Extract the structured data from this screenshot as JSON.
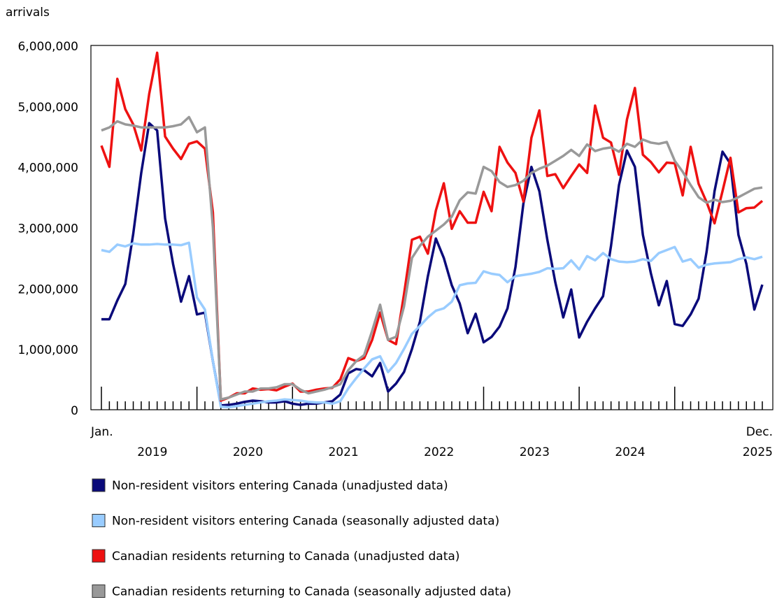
{
  "chart_data": {
    "type": "line",
    "y_label": "arrivals",
    "categories": [
      "Jan.",
      null,
      null,
      null,
      null,
      null,
      null,
      null,
      null,
      null,
      null,
      null,
      null,
      null,
      null,
      null,
      null,
      null,
      null,
      null,
      null,
      null,
      null,
      null,
      null,
      null,
      null,
      null,
      null,
      null,
      null,
      null,
      null,
      null,
      null,
      null,
      null,
      null,
      null,
      null,
      null,
      null,
      null,
      null,
      null,
      null,
      null,
      null,
      null,
      null,
      null,
      null,
      null,
      null,
      null,
      null,
      null,
      null,
      null,
      null,
      null,
      null,
      null,
      null,
      null,
      null,
      null,
      null,
      null,
      null,
      null,
      null,
      null,
      null,
      null,
      null,
      null,
      null,
      null,
      null,
      null,
      null,
      null,
      "Dec."
    ],
    "years": [
      "2019",
      "2020",
      "2021",
      "2022",
      "2023",
      "2024",
      "2025"
    ],
    "ylim": [
      0,
      6000000
    ],
    "yticks": [
      0,
      {
        "value": 1000000,
        "label": "1,000,000"
      },
      {
        "value": 2000000,
        "label": "2,000,000"
      },
      {
        "value": 3000000,
        "label": "3,000,000"
      },
      {
        "value": 4000000,
        "label": "4,000,000"
      },
      {
        "value": 5000000,
        "label": "5,000,000"
      },
      {
        "value": 6000000,
        "label": "6,000,000"
      }
    ],
    "grid": false,
    "series": [
      {
        "name": "Non-resident visitors entering Canada (unadjusted data)",
        "color": "#0a0a7a",
        "values": [
          1490000,
          1490000,
          1800000,
          2070000,
          2900000,
          3900000,
          4720000,
          4600000,
          3150000,
          2400000,
          1780000,
          2200000,
          1570000,
          1600000,
          800000,
          70000,
          80000,
          100000,
          130000,
          150000,
          140000,
          120000,
          120000,
          140000,
          100000,
          80000,
          100000,
          100000,
          120000,
          140000,
          250000,
          600000,
          670000,
          650000,
          550000,
          770000,
          300000,
          430000,
          620000,
          1000000,
          1450000,
          2200000,
          2820000,
          2500000,
          2050000,
          1750000,
          1260000,
          1580000,
          1110000,
          1200000,
          1370000,
          1670000,
          2350000,
          3400000,
          4000000,
          3600000,
          2800000,
          2100000,
          1520000,
          1980000,
          1190000,
          1450000,
          1670000,
          1870000,
          2700000,
          3700000,
          4270000,
          4000000,
          2880000,
          2250000,
          1720000,
          2120000,
          1410000,
          1380000,
          1570000,
          1830000,
          2600000,
          3600000,
          4250000,
          4050000,
          2880000,
          2400000,
          1650000,
          2060000
        ]
      },
      {
        "name": "Non-resident visitors entering Canada (seasonally adjusted data)",
        "color": "#99ccff",
        "values": [
          2630000,
          2600000,
          2720000,
          2690000,
          2740000,
          2720000,
          2720000,
          2730000,
          2720000,
          2720000,
          2710000,
          2750000,
          1850000,
          1650000,
          800000,
          50000,
          40000,
          60000,
          80000,
          100000,
          120000,
          140000,
          150000,
          170000,
          160000,
          150000,
          130000,
          120000,
          120000,
          100000,
          140000,
          350000,
          520000,
          680000,
          830000,
          880000,
          620000,
          770000,
          1000000,
          1250000,
          1380000,
          1520000,
          1630000,
          1670000,
          1780000,
          2050000,
          2080000,
          2090000,
          2280000,
          2240000,
          2220000,
          2100000,
          2200000,
          2220000,
          2240000,
          2270000,
          2330000,
          2320000,
          2330000,
          2460000,
          2310000,
          2530000,
          2460000,
          2580000,
          2480000,
          2440000,
          2430000,
          2440000,
          2480000,
          2450000,
          2580000,
          2630000,
          2680000,
          2440000,
          2480000,
          2340000,
          2390000,
          2410000,
          2420000,
          2430000,
          2480000,
          2510000,
          2480000,
          2520000
        ]
      },
      {
        "name": "Canadian residents returning to Canada (unadjusted data)",
        "color": "#ee1111",
        "values": [
          4350000,
          4000000,
          5450000,
          4950000,
          4700000,
          4270000,
          5200000,
          5880000,
          4500000,
          4300000,
          4130000,
          4380000,
          4420000,
          4300000,
          3250000,
          150000,
          200000,
          270000,
          270000,
          350000,
          330000,
          340000,
          320000,
          380000,
          430000,
          300000,
          300000,
          330000,
          350000,
          360000,
          500000,
          850000,
          800000,
          850000,
          1150000,
          1600000,
          1150000,
          1080000,
          1900000,
          2800000,
          2850000,
          2570000,
          3280000,
          3730000,
          2980000,
          3270000,
          3080000,
          3080000,
          3590000,
          3270000,
          4330000,
          4070000,
          3900000,
          3430000,
          4480000,
          4930000,
          3850000,
          3880000,
          3650000,
          3850000,
          4040000,
          3900000,
          5010000,
          4480000,
          4400000,
          3870000,
          4780000,
          5300000,
          4200000,
          4080000,
          3910000,
          4070000,
          4060000,
          3530000,
          4330000,
          3720000,
          3420000,
          3070000,
          3600000,
          4150000,
          3250000,
          3320000,
          3330000,
          3440000
        ]
      },
      {
        "name": "Canadian residents returning to Canada (seasonally adjusted data)",
        "color": "#999999",
        "values": [
          4600000,
          4650000,
          4750000,
          4700000,
          4680000,
          4650000,
          4650000,
          4650000,
          4650000,
          4670000,
          4700000,
          4820000,
          4570000,
          4650000,
          3000000,
          170000,
          200000,
          250000,
          300000,
          300000,
          350000,
          350000,
          370000,
          420000,
          420000,
          330000,
          270000,
          300000,
          330000,
          370000,
          420000,
          650000,
          800000,
          900000,
          1300000,
          1730000,
          1150000,
          1200000,
          1700000,
          2500000,
          2700000,
          2850000,
          2950000,
          3050000,
          3180000,
          3450000,
          3580000,
          3560000,
          4000000,
          3930000,
          3750000,
          3670000,
          3700000,
          3770000,
          3900000,
          3970000,
          4020000,
          4100000,
          4180000,
          4280000,
          4180000,
          4370000,
          4260000,
          4300000,
          4320000,
          4250000,
          4380000,
          4330000,
          4450000,
          4400000,
          4380000,
          4410000,
          4100000,
          3920000,
          3700000,
          3500000,
          3410000,
          3460000,
          3420000,
          3440000,
          3500000,
          3570000,
          3640000,
          3660000
        ]
      }
    ]
  }
}
